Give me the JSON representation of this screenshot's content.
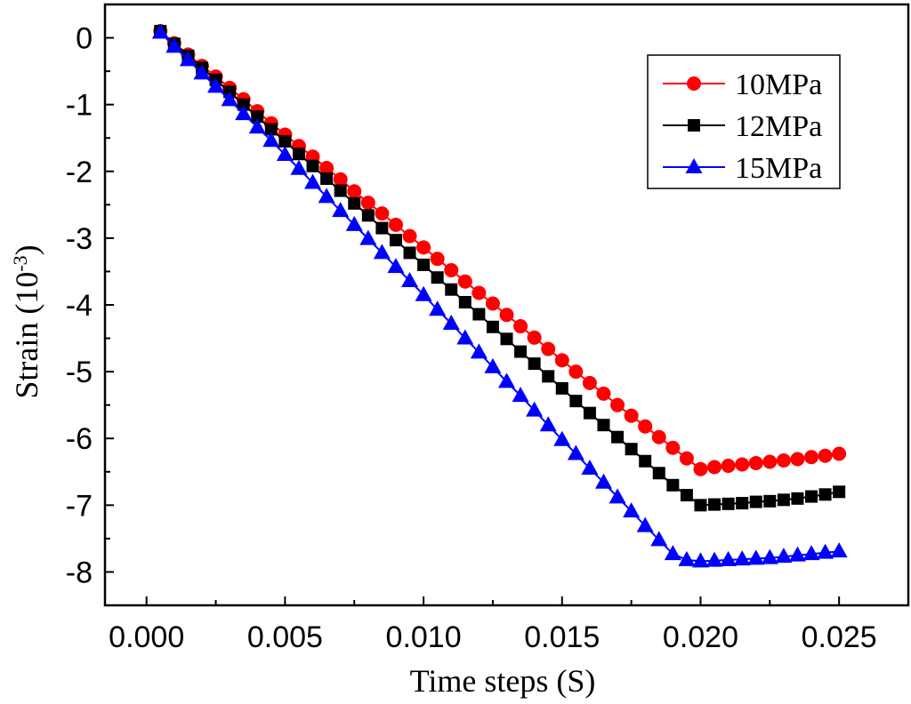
{
  "chart_data": {
    "type": "line",
    "title": "",
    "xlabel": "Time steps (S)",
    "ylabel_main": "Strain (10",
    "ylabel_exp": "-3",
    "ylabel_close": ")",
    "xlim": [
      -0.0015,
      0.0275
    ],
    "ylim": [
      -8.5,
      0.5
    ],
    "xticks": [
      0,
      0.005,
      0.01,
      0.015,
      0.02,
      0.025
    ],
    "xtick_labels": [
      "0.000",
      "0.005",
      "0.010",
      "0.015",
      "0.020",
      "0.025"
    ],
    "yticks": [
      0,
      -1,
      -2,
      -3,
      -4,
      -5,
      -6,
      -7,
      -8
    ],
    "ytick_labels": [
      "0",
      "-1",
      "-2",
      "-3",
      "-4",
      "-5",
      "-6",
      "-7",
      "-8"
    ],
    "grid": false,
    "legend_position": "top-right",
    "x": [
      0.0005,
      0.001,
      0.0015,
      0.002,
      0.0025,
      0.003,
      0.0035,
      0.004,
      0.0045,
      0.005,
      0.0055,
      0.006,
      0.0065,
      0.007,
      0.0075,
      0.008,
      0.0085,
      0.009,
      0.0095,
      0.01,
      0.0105,
      0.011,
      0.0115,
      0.012,
      0.0125,
      0.013,
      0.0135,
      0.014,
      0.0145,
      0.015,
      0.0155,
      0.016,
      0.0165,
      0.017,
      0.0175,
      0.018,
      0.0185,
      0.019,
      0.0195,
      0.02,
      0.0205,
      0.021,
      0.0215,
      0.022,
      0.0225,
      0.023,
      0.0235,
      0.024,
      0.0245,
      0.025
    ],
    "series": [
      {
        "name": "10MPa",
        "color": "#ff0000",
        "marker": "circle",
        "values": [
          0.1,
          -0.08,
          -0.25,
          -0.42,
          -0.58,
          -0.75,
          -0.92,
          -1.1,
          -1.28,
          -1.45,
          -1.62,
          -1.78,
          -1.95,
          -2.12,
          -2.3,
          -2.47,
          -2.63,
          -2.8,
          -2.97,
          -3.14,
          -3.31,
          -3.48,
          -3.65,
          -3.82,
          -3.98,
          -4.15,
          -4.32,
          -4.49,
          -4.66,
          -4.83,
          -5.0,
          -5.17,
          -5.33,
          -5.5,
          -5.66,
          -5.82,
          -5.98,
          -6.14,
          -6.3,
          -6.46,
          -6.43,
          -6.41,
          -6.39,
          -6.37,
          -6.35,
          -6.33,
          -6.31,
          -6.28,
          -6.26,
          -6.23
        ]
      },
      {
        "name": "12MPa",
        "color": "#000000",
        "marker": "square",
        "values": [
          0.1,
          -0.09,
          -0.27,
          -0.45,
          -0.63,
          -0.81,
          -1.0,
          -1.18,
          -1.37,
          -1.55,
          -1.74,
          -1.92,
          -2.11,
          -2.29,
          -2.48,
          -2.66,
          -2.85,
          -3.03,
          -3.22,
          -3.4,
          -3.59,
          -3.77,
          -3.96,
          -4.14,
          -4.33,
          -4.51,
          -4.7,
          -4.88,
          -5.07,
          -5.25,
          -5.44,
          -5.62,
          -5.8,
          -5.98,
          -6.16,
          -6.34,
          -6.52,
          -6.7,
          -6.85,
          -7.0,
          -6.99,
          -6.98,
          -6.97,
          -6.95,
          -6.94,
          -6.92,
          -6.9,
          -6.87,
          -6.84,
          -6.8
        ]
      },
      {
        "name": "15MPa",
        "color": "#0000ff",
        "marker": "triangle",
        "values": [
          0.08,
          -0.13,
          -0.33,
          -0.53,
          -0.73,
          -0.93,
          -1.14,
          -1.34,
          -1.54,
          -1.75,
          -1.96,
          -2.17,
          -2.38,
          -2.59,
          -2.8,
          -3.01,
          -3.22,
          -3.43,
          -3.64,
          -3.85,
          -4.07,
          -4.28,
          -4.5,
          -4.71,
          -4.93,
          -5.15,
          -5.36,
          -5.58,
          -5.8,
          -6.02,
          -6.23,
          -6.45,
          -6.66,
          -6.88,
          -7.09,
          -7.31,
          -7.52,
          -7.73,
          -7.82,
          -7.84,
          -7.83,
          -7.82,
          -7.81,
          -7.8,
          -7.79,
          -7.77,
          -7.75,
          -7.73,
          -7.71,
          -7.69
        ]
      }
    ]
  }
}
